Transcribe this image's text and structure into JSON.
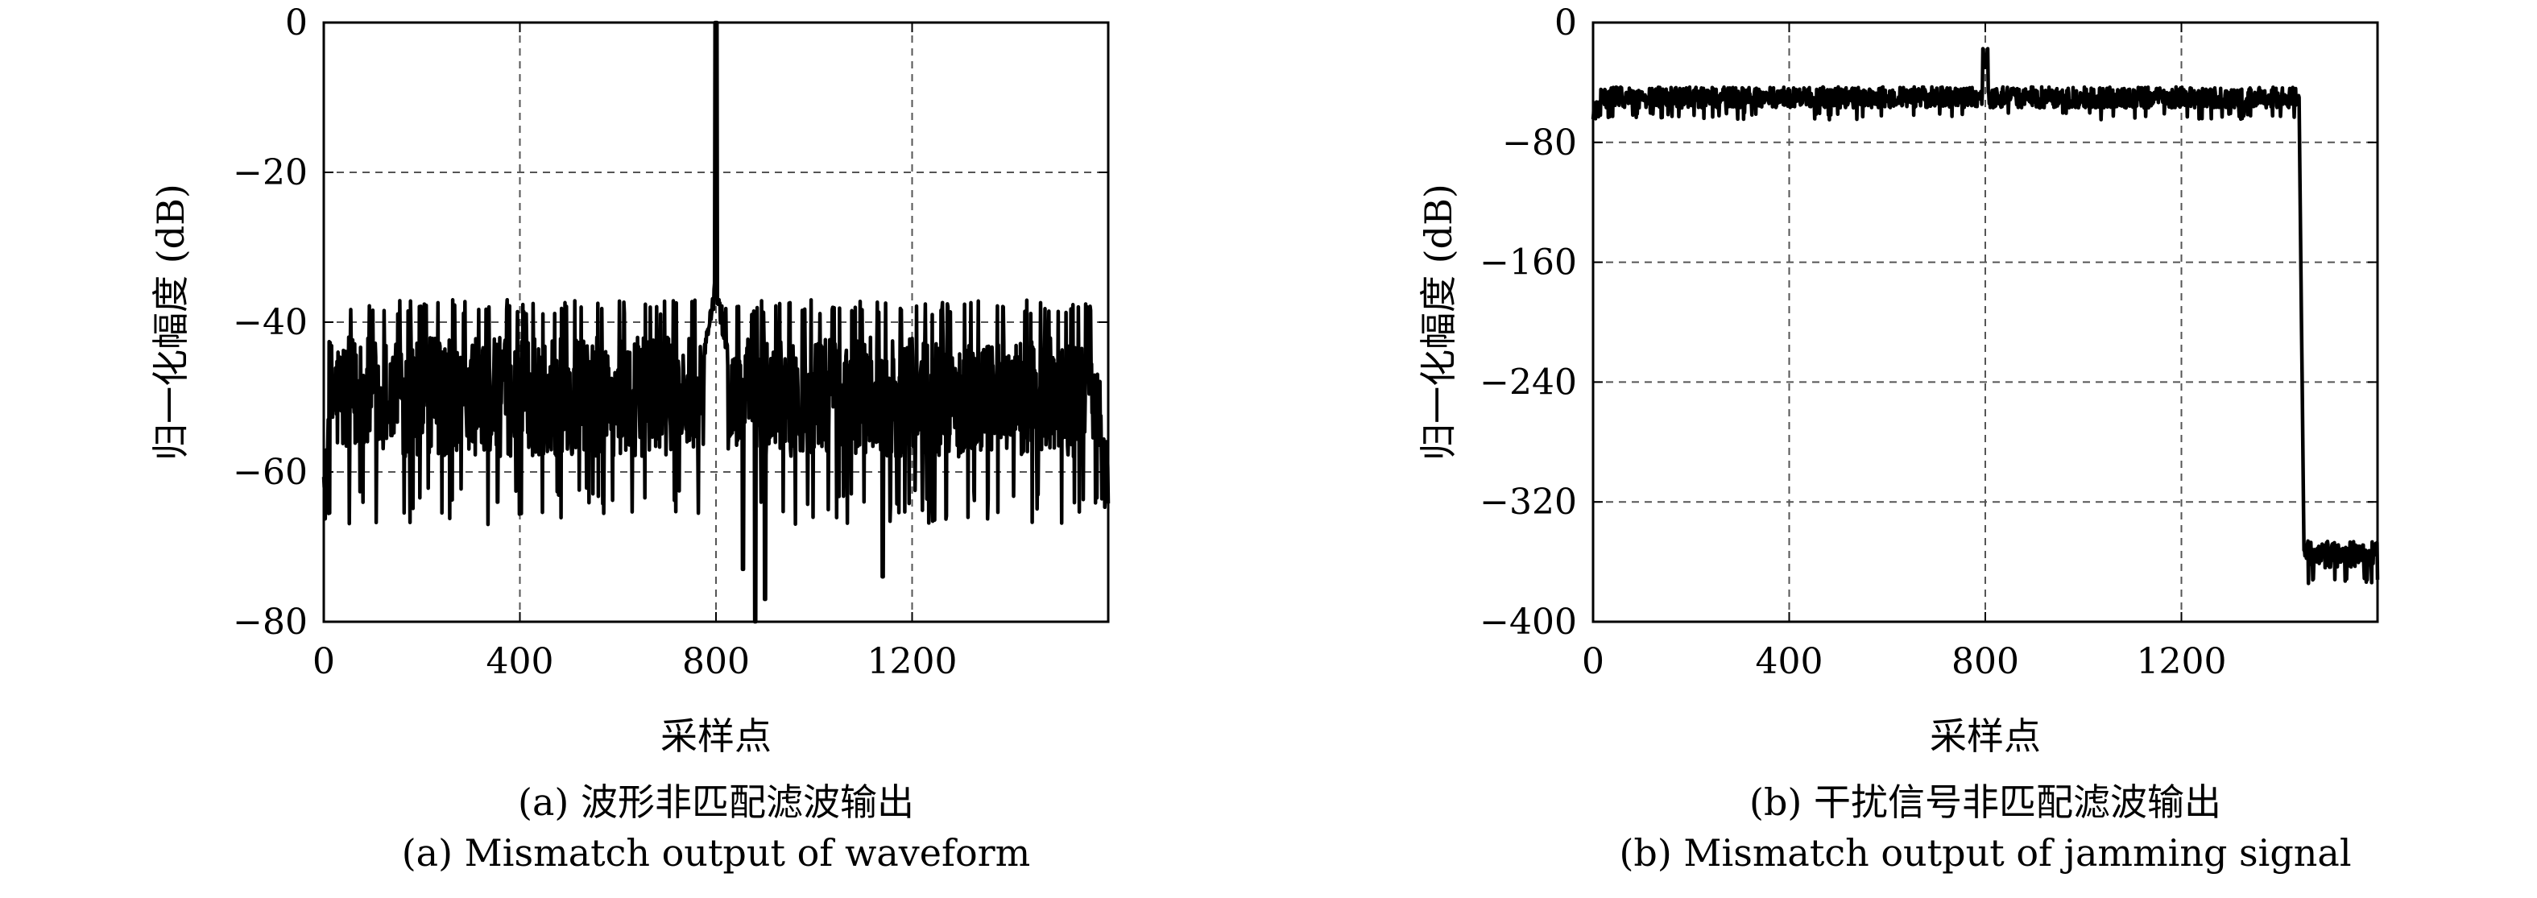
{
  "chart_data": [
    {
      "type": "line",
      "title": "",
      "xlabel": "采样点",
      "ylabel": "归一化幅度 (dB)",
      "xlim": [
        0,
        1600
      ],
      "ylim": [
        -80,
        0
      ],
      "xticks": [
        0,
        400,
        800,
        1200
      ],
      "yticks": [
        0,
        -20,
        -40,
        -60,
        -80
      ],
      "xtick_labels": [
        "0",
        "400",
        "800",
        "1200"
      ],
      "ytick_labels": [
        "0",
        "−20",
        "−40",
        "−60",
        "−80"
      ],
      "grid": true,
      "caption_cn": "(a) 波形非匹配滤波输出",
      "caption_en": "(a) Mismatch output of waveform",
      "series": [
        {
          "color": "#000000",
          "noise_floor_db": -50,
          "noise_range_db": [
            -67,
            -37
          ],
          "peak": {
            "x": 800,
            "y": -1
          },
          "sidelobe_shoulder": {
            "x": 800,
            "y": -35
          },
          "nulls": [
            {
              "x": 855,
              "y": -73
            },
            {
              "x": 880,
              "y": -80
            },
            {
              "x": 900,
              "y": -77
            },
            {
              "x": 1140,
              "y": -74
            }
          ]
        }
      ]
    },
    {
      "type": "line",
      "title": "",
      "xlabel": "采样点",
      "ylabel": "归一化幅度 (dB)",
      "xlim": [
        0,
        1600
      ],
      "ylim": [
        -400,
        0
      ],
      "xticks": [
        0,
        400,
        800,
        1200
      ],
      "yticks": [
        0,
        -80,
        -160,
        -240,
        -320,
        -400
      ],
      "xtick_labels": [
        "0",
        "400",
        "800",
        "1200"
      ],
      "ytick_labels": [
        "0",
        "−80",
        "−160",
        "−240",
        "−320",
        "−400"
      ],
      "grid": true,
      "caption_cn": "(b) 干扰信号非匹配滤波输出",
      "caption_en": "(b) Mismatch output of jamming signal",
      "series": [
        {
          "color": "#000000",
          "plateau_db": -50,
          "plateau_range_db": [
            -68,
            -40
          ],
          "bump": {
            "x": 800,
            "y": -30
          },
          "edge_x": 1440,
          "floor_db": -355,
          "floor_range_db": [
            -375,
            -345
          ]
        }
      ]
    }
  ]
}
